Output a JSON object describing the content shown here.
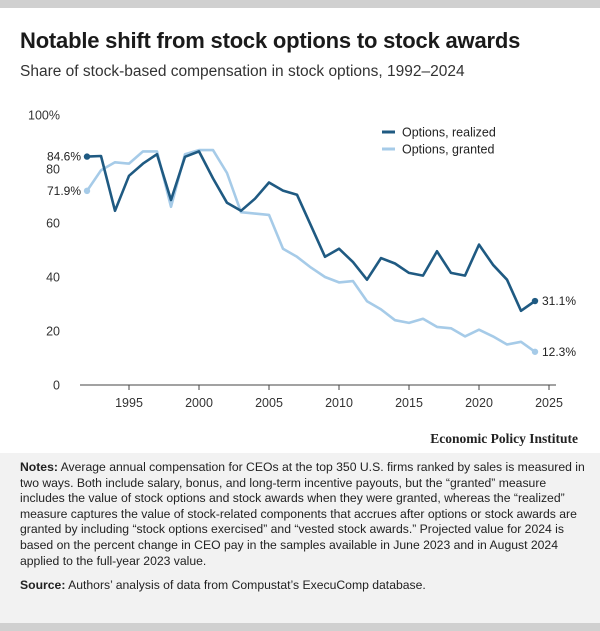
{
  "title": "Notable shift from stock options to stock awards",
  "subtitle": "Share of stock-based compensation in stock options, 1992–2024",
  "organization": "Economic Policy Institute",
  "notes": {
    "label": "Notes:",
    "text": "Average annual compensation for CEOs at the top 350 U.S. firms ranked by sales is measured in two ways. Both include salary, bonus, and long-term incentive payouts, but the “granted” measure includes the value of stock options and stock awards when they were granted, whereas the “realized” measure captures the value of stock-related components that accrues after options or stock awards are granted by including “stock options exercised” and “vested stock awards.” Projected value for 2024 is based on the percent change in CEO pay in the samples available in June 2023 and in August 2024 applied to the full-year 2023 value."
  },
  "source": {
    "label": "Source:",
    "text": "Authors’ analysis of data from Compustat’s ExecuComp database."
  },
  "chart_data": {
    "type": "line",
    "title": "Notable shift from stock options to stock awards",
    "subtitle": "Share of stock-based compensation in stock options, 1992–2024",
    "x": [
      1992,
      1993,
      1994,
      1995,
      1996,
      1997,
      1998,
      1999,
      2000,
      2001,
      2002,
      2003,
      2004,
      2005,
      2006,
      2007,
      2008,
      2009,
      2010,
      2011,
      2012,
      2013,
      2014,
      2015,
      2016,
      2017,
      2018,
      2019,
      2020,
      2021,
      2022,
      2023,
      2024
    ],
    "xlim": [
      1991.5,
      2025.5
    ],
    "ylim": [
      0,
      100
    ],
    "x_ticks": [
      1995,
      2000,
      2005,
      2010,
      2015,
      2020,
      2025
    ],
    "y_ticks": [
      {
        "value": 0,
        "label": "0"
      },
      {
        "value": 20,
        "label": "20"
      },
      {
        "value": 40,
        "label": "40"
      },
      {
        "value": 60,
        "label": "60"
      },
      {
        "value": 80,
        "label": "80"
      },
      {
        "value": 100,
        "label": "100%"
      }
    ],
    "legend_position": "top-right",
    "series": [
      {
        "name": "Options, realized",
        "color": "#1f5a82",
        "values": [
          84.6,
          84.8,
          64.5,
          77.5,
          82,
          85.5,
          68.5,
          84.5,
          86.5,
          76.5,
          67.5,
          64.5,
          69,
          75,
          72,
          70.5,
          59,
          47.5,
          50.5,
          45.5,
          39,
          47,
          45,
          41.5,
          40.5,
          49.5,
          41.5,
          40.5,
          52,
          44.5,
          39,
          27.5,
          31.1
        ],
        "start_label": "84.6%",
        "end_label": "31.1%"
      },
      {
        "name": "Options, granted",
        "color": "#a6cbe8",
        "values": [
          71.9,
          79.5,
          82.5,
          82,
          86.5,
          86.5,
          66,
          85.5,
          87,
          87,
          78.5,
          64,
          63.5,
          63,
          50.5,
          47.5,
          43.5,
          40,
          38,
          38.5,
          31,
          28,
          24,
          23,
          24.5,
          21.5,
          21,
          18,
          20.5,
          18,
          15,
          16,
          12.3
        ],
        "start_label": "71.9%",
        "end_label": "12.3%"
      }
    ]
  }
}
